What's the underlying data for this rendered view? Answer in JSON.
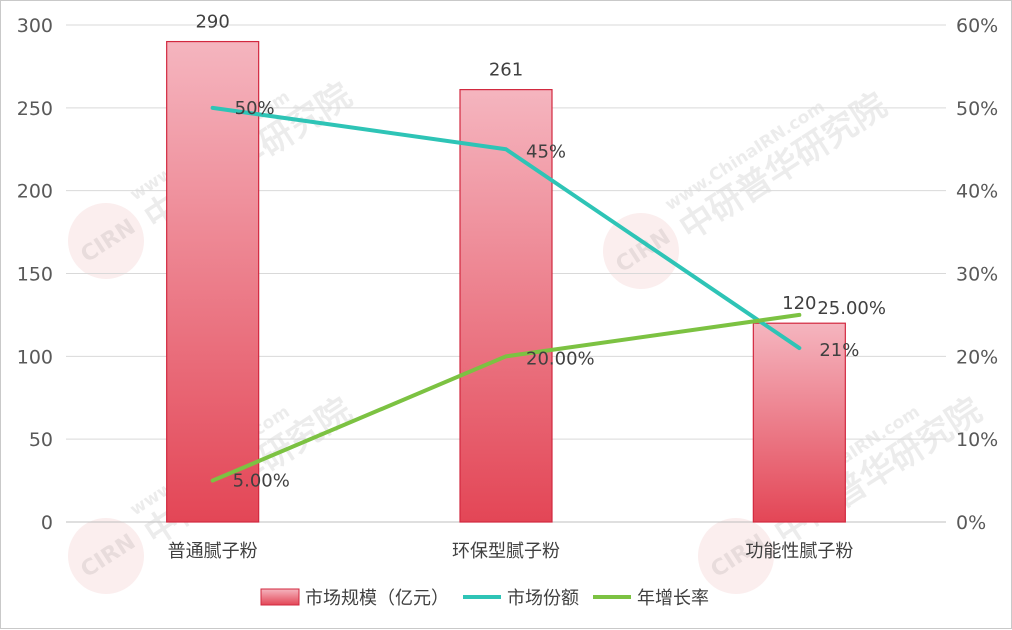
{
  "chart_data": {
    "type": "bar",
    "categories": [
      "普通腻子粉",
      "环保型腻子粉",
      "功能性腻子粉"
    ],
    "series": [
      {
        "name": "市场规模（亿元）",
        "kind": "bar",
        "axis": "left",
        "values": [
          290,
          261,
          120
        ],
        "labels": [
          "290",
          "261",
          "120"
        ],
        "color": "#e34a5c"
      },
      {
        "name": "市场份额",
        "kind": "line",
        "axis": "right",
        "values": [
          50,
          45,
          21
        ],
        "labels": [
          "50%",
          "45%",
          "21%"
        ],
        "color": "#2ec4b6"
      },
      {
        "name": "年增长率",
        "kind": "line",
        "axis": "right",
        "values": [
          5,
          20,
          25
        ],
        "labels": [
          "5.00%",
          "20.00%",
          "25.00%"
        ],
        "color": "#7cc242"
      }
    ],
    "y_left": {
      "ylim": [
        0,
        300
      ],
      "ticks": [
        "0",
        "50",
        "100",
        "150",
        "200",
        "250",
        "300"
      ]
    },
    "y_right": {
      "ylim": [
        0,
        60
      ],
      "ticks": [
        "0%",
        "10%",
        "20%",
        "30%",
        "40%",
        "50%",
        "60%"
      ]
    },
    "grid": true,
    "legend_position": "bottom",
    "watermark": {
      "brand": "中研普华研究院",
      "site": "www.ChinaIRN.com",
      "logo": "CIRN"
    }
  }
}
